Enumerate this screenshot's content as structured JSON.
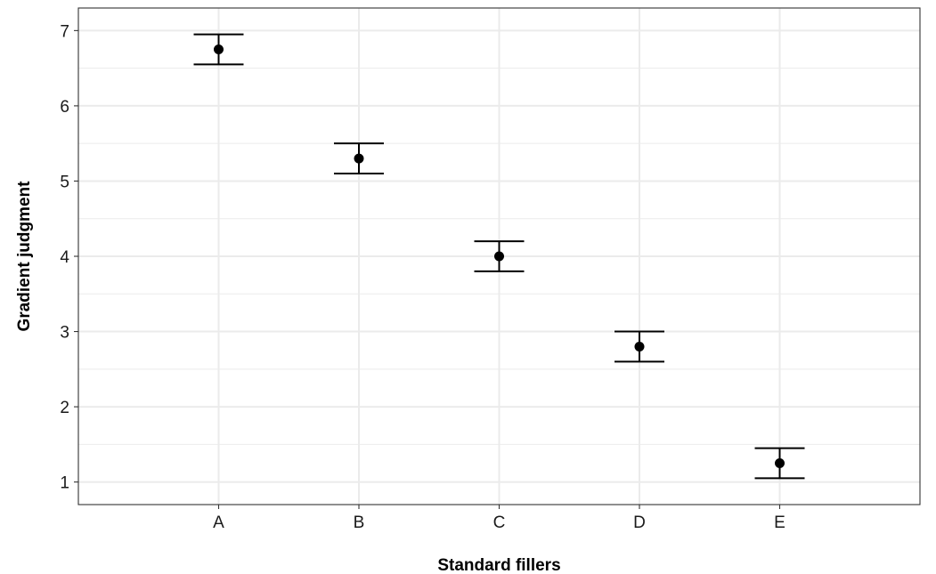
{
  "chart_data": {
    "type": "scatter",
    "title": "",
    "xlabel": "Standard fillers",
    "ylabel": "Gradient judgment",
    "categories": [
      "A",
      "B",
      "C",
      "D",
      "E"
    ],
    "series": [
      {
        "values": [
          6.75,
          5.3,
          4.0,
          2.8,
          1.25
        ],
        "error_low": [
          6.55,
          5.1,
          3.8,
          2.6,
          1.05
        ],
        "error_high": [
          6.95,
          5.5,
          4.2,
          3.0,
          1.45
        ]
      }
    ],
    "ylim": [
      0.7,
      7.3
    ],
    "yticks": [
      1,
      2,
      3,
      4,
      5,
      6,
      7
    ],
    "grid": true,
    "legend": "none",
    "colors": {
      "point": "#000000",
      "grid": "#ebebeb",
      "panel_border": "#333333",
      "background": "#ffffff"
    }
  }
}
